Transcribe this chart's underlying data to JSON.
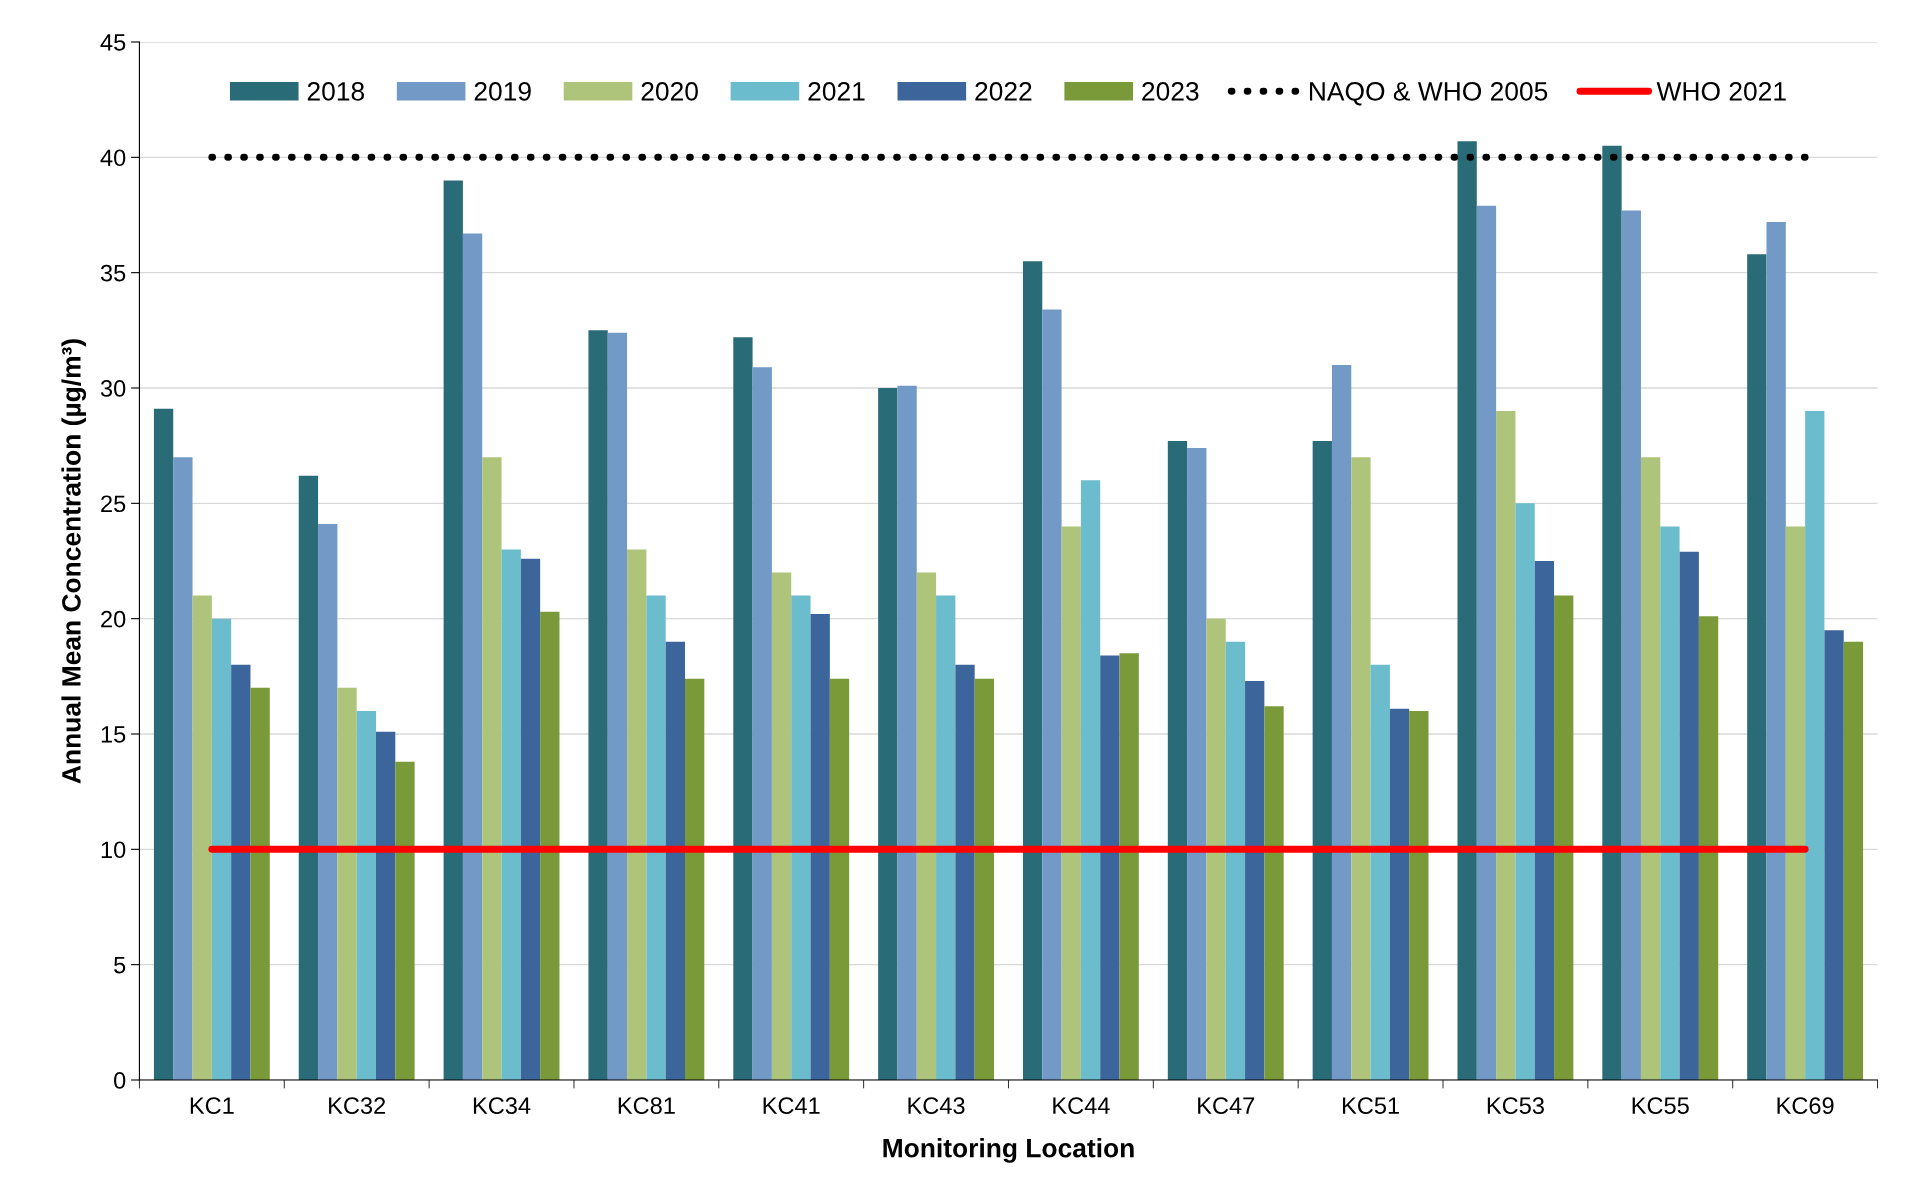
{
  "chart_data": {
    "type": "bar",
    "xlabel": "Monitoring Location",
    "ylabel": "Annual Mean Concentration (µg/m³)",
    "categories": [
      "KC1",
      "KC32",
      "KC34",
      "KC81",
      "KC41",
      "KC43",
      "KC44",
      "KC47",
      "KC51",
      "KC53",
      "KC55",
      "KC69"
    ],
    "series": [
      {
        "name": "2018",
        "color": "#2a6b78",
        "values": [
          29.1,
          26.2,
          39,
          32.5,
          32.2,
          30,
          35.5,
          27.7,
          27.7,
          40.7,
          40.5,
          35.8
        ]
      },
      {
        "name": "2019",
        "color": "#7399c6",
        "values": [
          27,
          24.1,
          36.7,
          32.4,
          30.9,
          30.1,
          33.4,
          27.4,
          31,
          37.9,
          37.7,
          37.2
        ]
      },
      {
        "name": "2020",
        "color": "#adc47a",
        "values": [
          21,
          17,
          27,
          23,
          22,
          22,
          24,
          20,
          27,
          29,
          27,
          24
        ]
      },
      {
        "name": "2021",
        "color": "#6bbccc",
        "values": [
          20,
          16,
          23,
          21,
          21,
          21,
          26,
          19,
          18,
          25,
          24,
          29
        ]
      },
      {
        "name": "2022",
        "color": "#3c659b",
        "values": [
          18,
          15.1,
          22.6,
          19,
          20.2,
          18,
          18.4,
          17.3,
          16.1,
          22.5,
          22.9,
          19.5
        ]
      },
      {
        "name": "2023",
        "color": "#7a9a3a",
        "values": [
          17,
          13.8,
          20.3,
          17.4,
          17.4,
          17.4,
          18.5,
          16.2,
          16,
          21,
          20.1,
          19
        ]
      },
      {
        "name": "NAQO & WHO 2005",
        "type": "line",
        "line_style": "dotted",
        "color": "#000000",
        "values": [
          40,
          40,
          40,
          40,
          40,
          40,
          40,
          40,
          40,
          40,
          40,
          40
        ]
      },
      {
        "name": "WHO 2021",
        "type": "line",
        "line_style": "solid",
        "color": "#ff0000",
        "values": [
          10,
          10,
          10,
          10,
          10,
          10,
          10,
          10,
          10,
          10,
          10,
          10
        ]
      }
    ],
    "ylim": [
      0,
      45
    ],
    "yticks": [
      0,
      5,
      10,
      15,
      20,
      25,
      30,
      35,
      40,
      45
    ],
    "grid": "y",
    "legend": "top"
  }
}
